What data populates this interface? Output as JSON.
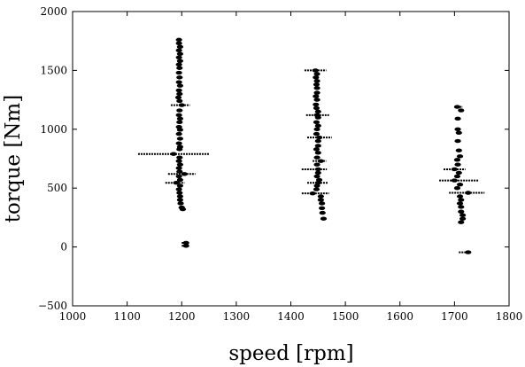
{
  "chart_data": {
    "type": "scatter",
    "title": "",
    "xlabel": "speed [rpm]",
    "ylabel": "torque [Nm]",
    "xlim": [
      1000,
      1800
    ],
    "ylim": [
      -500,
      2000
    ],
    "xticks": [
      1000,
      1100,
      1200,
      1300,
      1400,
      1500,
      1600,
      1700,
      1800
    ],
    "yticks": [
      -500,
      0,
      500,
      1000,
      1500,
      2000
    ],
    "xtick_labels": [
      "1000",
      "1100",
      "1200",
      "1300",
      "1400",
      "1500",
      "1600",
      "1700",
      "1800"
    ],
    "ytick_labels": [
      "−500",
      "0",
      "500",
      "1000",
      "1500",
      "2000"
    ],
    "grid": false,
    "marker_color": "#000000",
    "series": [
      {
        "points": [
          [
            1195,
            1760
          ],
          [
            1195,
            1730
          ],
          [
            1197,
            1700
          ],
          [
            1195,
            1670
          ],
          [
            1197,
            1640
          ],
          [
            1195,
            1610
          ],
          [
            1197,
            1580
          ],
          [
            1195,
            1550
          ],
          [
            1196,
            1520
          ],
          [
            1195,
            1480
          ],
          [
            1196,
            1440
          ],
          [
            1195,
            1400
          ],
          [
            1197,
            1370
          ],
          [
            1195,
            1330
          ],
          [
            1196,
            1300
          ],
          [
            1194,
            1270
          ],
          [
            1196,
            1240
          ],
          [
            1200,
            1205
          ],
          [
            1196,
            1160
          ],
          [
            1195,
            1120
          ],
          [
            1197,
            1090
          ],
          [
            1196,
            1060
          ],
          [
            1195,
            1020
          ],
          [
            1197,
            995
          ],
          [
            1195,
            960
          ],
          [
            1197,
            920
          ],
          [
            1195,
            880
          ],
          [
            1197,
            850
          ],
          [
            1196,
            830
          ],
          [
            1185,
            790
          ],
          [
            1196,
            760
          ],
          [
            1195,
            730
          ],
          [
            1197,
            700
          ],
          [
            1195,
            670
          ],
          [
            1196,
            640
          ],
          [
            1205,
            620
          ],
          [
            1195,
            600
          ],
          [
            1197,
            570
          ],
          [
            1190,
            545
          ],
          [
            1197,
            520
          ],
          [
            1195,
            490
          ],
          [
            1196,
            460
          ],
          [
            1197,
            430
          ],
          [
            1197,
            400
          ],
          [
            1198,
            370
          ],
          [
            1200,
            335
          ],
          [
            1202,
            320
          ],
          [
            1208,
            35
          ],
          [
            1208,
            10
          ],
          [
            1445,
            1500
          ],
          [
            1448,
            1470
          ],
          [
            1446,
            1440
          ],
          [
            1448,
            1410
          ],
          [
            1447,
            1380
          ],
          [
            1448,
            1350
          ],
          [
            1448,
            1310
          ],
          [
            1446,
            1280
          ],
          [
            1448,
            1250
          ],
          [
            1446,
            1210
          ],
          [
            1447,
            1180
          ],
          [
            1450,
            1150
          ],
          [
            1448,
            1120
          ],
          [
            1450,
            1100
          ],
          [
            1447,
            1060
          ],
          [
            1450,
            1030
          ],
          [
            1448,
            1000
          ],
          [
            1447,
            960
          ],
          [
            1452,
            930
          ],
          [
            1450,
            900
          ],
          [
            1450,
            860
          ],
          [
            1447,
            830
          ],
          [
            1450,
            800
          ],
          [
            1448,
            760
          ],
          [
            1455,
            730
          ],
          [
            1448,
            700
          ],
          [
            1450,
            660
          ],
          [
            1450,
            630
          ],
          [
            1448,
            600
          ],
          [
            1452,
            570
          ],
          [
            1450,
            545
          ],
          [
            1448,
            520
          ],
          [
            1447,
            490
          ],
          [
            1440,
            455
          ],
          [
            1455,
            430
          ],
          [
            1455,
            400
          ],
          [
            1457,
            370
          ],
          [
            1457,
            330
          ],
          [
            1458,
            290
          ],
          [
            1460,
            240
          ],
          [
            1705,
            1190
          ],
          [
            1712,
            1160
          ],
          [
            1706,
            1090
          ],
          [
            1706,
            1000
          ],
          [
            1708,
            970
          ],
          [
            1706,
            900
          ],
          [
            1708,
            820
          ],
          [
            1710,
            770
          ],
          [
            1705,
            740
          ],
          [
            1706,
            700
          ],
          [
            1700,
            660
          ],
          [
            1708,
            630
          ],
          [
            1705,
            600
          ],
          [
            1700,
            565
          ],
          [
            1710,
            530
          ],
          [
            1705,
            500
          ],
          [
            1725,
            460
          ],
          [
            1710,
            430
          ],
          [
            1712,
            400
          ],
          [
            1710,
            370
          ],
          [
            1712,
            340
          ],
          [
            1712,
            300
          ],
          [
            1715,
            270
          ],
          [
            1715,
            240
          ],
          [
            1712,
            210
          ],
          [
            1725,
            -45
          ]
        ],
        "h_segments": [
          [
            1120,
            1250,
            790
          ],
          [
            1180,
            1215,
            1205
          ],
          [
            1175,
            1225,
            620
          ],
          [
            1170,
            1205,
            545
          ],
          [
            1200,
            1210,
            35
          ],
          [
            1200,
            1210,
            10
          ],
          [
            1425,
            1465,
            1500
          ],
          [
            1428,
            1470,
            1120
          ],
          [
            1430,
            1475,
            930
          ],
          [
            1440,
            1465,
            730
          ],
          [
            1420,
            1470,
            455
          ],
          [
            1430,
            1468,
            545
          ],
          [
            1420,
            1466,
            660
          ],
          [
            1680,
            1720,
            660
          ],
          [
            1672,
            1745,
            565
          ],
          [
            1690,
            1755,
            460
          ],
          [
            1708,
            1730,
            -45
          ],
          [
            1700,
            1715,
            1190
          ]
        ]
      }
    ]
  }
}
